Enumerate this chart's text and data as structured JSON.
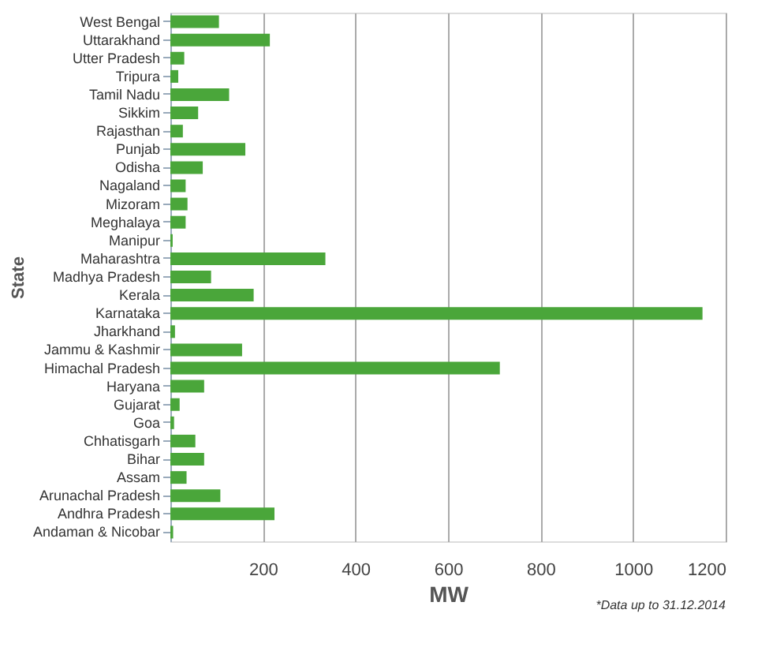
{
  "chart_data": {
    "type": "bar",
    "orientation": "horizontal",
    "ylabel": "State",
    "xlabel": "MW",
    "categories": [
      "West Bengal",
      "Uttarakhand",
      "Utter Pradesh",
      "Tripura",
      "Tamil Nadu",
      "Sikkim",
      "Rajasthan",
      "Punjab",
      "Odisha",
      "Nagaland",
      "Mizoram",
      "Meghalaya",
      "Manipur",
      "Maharashtra",
      "Madhya Pradesh",
      "Kerala",
      "Karnataka",
      "Jharkhand",
      "Jammu & Kashmir",
      "Himachal Pradesh",
      "Haryana",
      "Gujarat",
      "Goa",
      "Chhatisgarh",
      "Bihar",
      "Assam",
      "Arunachal Pradesh",
      "Andhra Pradesh",
      "Andaman & Nicobar"
    ],
    "values": [
      105,
      215,
      30,
      17,
      127,
      60,
      27,
      162,
      70,
      33,
      37,
      33,
      5,
      335,
      88,
      180,
      1150,
      10,
      155,
      712,
      73,
      20,
      8,
      54,
      73,
      35,
      108,
      225,
      6
    ],
    "color": "#4aa63a",
    "xlim": [
      0,
      1200
    ],
    "xticks": [
      {
        "value": 0,
        "label": null
      },
      200,
      400,
      600,
      800,
      1000,
      1200
    ],
    "grid": "x",
    "annotations": [
      "*Data up to 31.12.2014"
    ]
  }
}
